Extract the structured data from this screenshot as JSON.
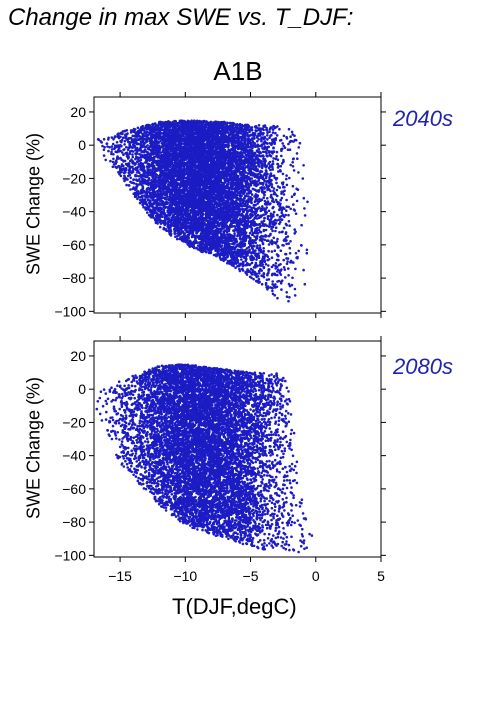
{
  "page_title": "Change in max SWE vs. T_DJF:",
  "scenario": "A1B",
  "colors": {
    "points": "#1c1cc4",
    "period_label": "#2222aa",
    "axis": "#000000"
  },
  "chart_data": [
    {
      "type": "scatter",
      "period": "2040s",
      "ylabel": "SWE Change (%)",
      "xlabel": "",
      "xlim": [
        -17,
        5
      ],
      "ylim": [
        -101,
        29
      ],
      "xticks": [
        -15,
        -10,
        -5,
        0,
        5
      ],
      "yticks": [
        20,
        0,
        -20,
        -40,
        -60,
        -80,
        -100
      ],
      "show_xtick_labels": false,
      "approx_points": 9000,
      "density_envelope": [
        {
          "t": -17,
          "y_min": -5,
          "y_max": 3
        },
        {
          "t": -15,
          "y_min": -20,
          "y_max": 8
        },
        {
          "t": -12,
          "y_min": -50,
          "y_max": 14
        },
        {
          "t": -10,
          "y_min": -60,
          "y_max": 15
        },
        {
          "t": -7,
          "y_min": -70,
          "y_max": 14
        },
        {
          "t": -5,
          "y_min": -80,
          "y_max": 12
        },
        {
          "t": -3,
          "y_min": -92,
          "y_max": 12
        },
        {
          "t": -2,
          "y_min": -97,
          "y_max": 10
        },
        {
          "t": -1,
          "y_min": -92,
          "y_max": 0
        },
        {
          "t": 0,
          "y_min": -85,
          "y_max": -78
        }
      ]
    },
    {
      "type": "scatter",
      "period": "2080s",
      "ylabel": "SWE Change (%)",
      "xlabel": "T(DJF,degC)",
      "xlim": [
        -17,
        5
      ],
      "ylim": [
        -101,
        29
      ],
      "xticks": [
        -15,
        -10,
        -5,
        0,
        5
      ],
      "yticks": [
        20,
        0,
        -20,
        -40,
        -60,
        -80,
        -100
      ],
      "show_xtick_labels": true,
      "approx_points": 9000,
      "density_envelope": [
        {
          "t": -17,
          "y_min": -12,
          "y_max": -3
        },
        {
          "t": -15,
          "y_min": -45,
          "y_max": 5
        },
        {
          "t": -12,
          "y_min": -70,
          "y_max": 14
        },
        {
          "t": -10,
          "y_min": -82,
          "y_max": 15
        },
        {
          "t": -7,
          "y_min": -90,
          "y_max": 12
        },
        {
          "t": -5,
          "y_min": -95,
          "y_max": 10
        },
        {
          "t": -3,
          "y_min": -98,
          "y_max": 10
        },
        {
          "t": -2,
          "y_min": -99,
          "y_max": 5
        },
        {
          "t": -1,
          "y_min": -98,
          "y_max": -70
        },
        {
          "t": 0,
          "y_min": -95,
          "y_max": -88
        }
      ]
    }
  ]
}
